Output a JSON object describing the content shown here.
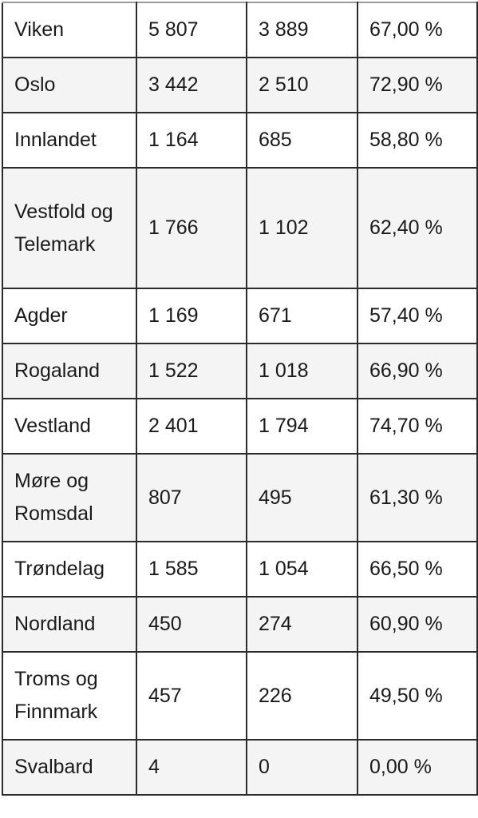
{
  "table": {
    "rows": [
      {
        "region": "Viken",
        "col2": "5 807",
        "col3": "3 889",
        "col4": "67,00 %"
      },
      {
        "region": "Oslo",
        "col2": "3 442",
        "col3": "2 510",
        "col4": "72,90 %"
      },
      {
        "region": "Innlandet",
        "col2": "1 164",
        "col3": "685",
        "col4": "58,80 %"
      },
      {
        "region": "Vestfold og Telemark",
        "col2": "1 766",
        "col3": "1 102",
        "col4": "62,40 %"
      },
      {
        "region": "Agder",
        "col2": "1 169",
        "col3": "671",
        "col4": "57,40 %"
      },
      {
        "region": "Rogaland",
        "col2": "1 522",
        "col3": "1 018",
        "col4": "66,90 %"
      },
      {
        "region": "Vestland",
        "col2": "2 401",
        "col3": "1 794",
        "col4": "74,70 %"
      },
      {
        "region": "Møre og Romsdal",
        "col2": "807",
        "col3": "495",
        "col4": "61,30 %"
      },
      {
        "region": "Trøndelag",
        "col2": "1 585",
        "col3": "1 054",
        "col4": "66,50 %"
      },
      {
        "region": "Nordland",
        "col2": "450",
        "col3": "274",
        "col4": "60,90 %"
      },
      {
        "region": "Troms og Finnmark",
        "col2": "457",
        "col3": "226",
        "col4": "49,50 %"
      },
      {
        "region": "Svalbard",
        "col2": "4",
        "col3": "0",
        "col4": "0,00 %"
      }
    ]
  }
}
